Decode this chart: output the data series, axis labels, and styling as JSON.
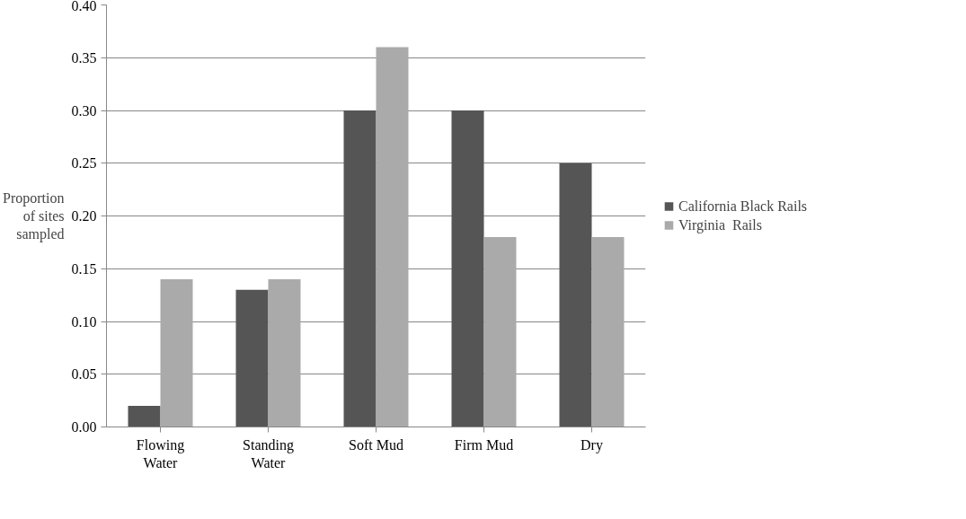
{
  "chart_data": {
    "type": "bar",
    "ylabel": "Proportion of sites sampled",
    "categories": [
      "Flowing Water",
      "Standing Water",
      "Soft Mud",
      "Firm Mud",
      "Dry"
    ],
    "series": [
      {
        "name": "California Black Rails",
        "color": "#555555",
        "values": [
          0.02,
          0.13,
          0.3,
          0.3,
          0.25
        ]
      },
      {
        "name": "Virginia  Rails",
        "color": "#aaaaaa",
        "values": [
          0.14,
          0.14,
          0.36,
          0.18,
          0.18
        ]
      }
    ],
    "ylim": [
      0,
      0.4
    ],
    "yticks": [
      {
        "value": 0,
        "label": "0.00"
      },
      {
        "value": 0.05,
        "label": "0.05"
      },
      {
        "value": 0.1,
        "label": "0.10"
      },
      {
        "value": 0.15,
        "label": "0.15"
      },
      {
        "value": 0.2,
        "label": "0.20"
      },
      {
        "value": 0.25,
        "label": "0.25"
      },
      {
        "value": 0.3,
        "label": "0.30"
      },
      {
        "value": 0.35,
        "label": "0.35"
      },
      {
        "value": 0.4,
        "label": "0.40"
      }
    ],
    "grid": "y",
    "legend": "right"
  }
}
